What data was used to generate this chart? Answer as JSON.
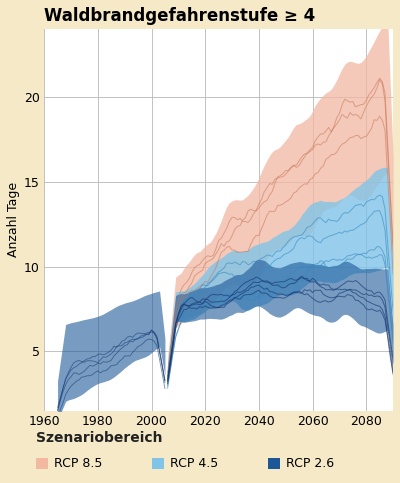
{
  "title": "Waldbrandgefahrenstufe ≥ 4",
  "ylabel": "Anzahl Tage",
  "xlabel_legend": "Szenariobereich",
  "xticks": [
    1960,
    1980,
    2000,
    2020,
    2040,
    2060,
    2080
  ],
  "yticks": [
    5,
    10,
    15,
    20
  ],
  "xlim": [
    1960,
    2090
  ],
  "ylim": [
    1.5,
    24
  ],
  "background_color": "#f5e9c8",
  "plot_bg": "#ffffff",
  "color_rcp85_fill": "#f2b8a2",
  "color_rcp85_line": "#c87858",
  "color_rcp45_fill": "#80c4e8",
  "color_rcp45_line": "#3888c0",
  "color_rcp26_fill": "#1c5898",
  "color_rcp26_line": "#143870",
  "legend_labels": [
    "RCP 8.5",
    "RCP 4.5",
    "RCP 2.6"
  ],
  "grid_color": "#b8b8b8",
  "title_fontsize": 12,
  "axis_fontsize": 9,
  "legend_title_fontsize": 10
}
